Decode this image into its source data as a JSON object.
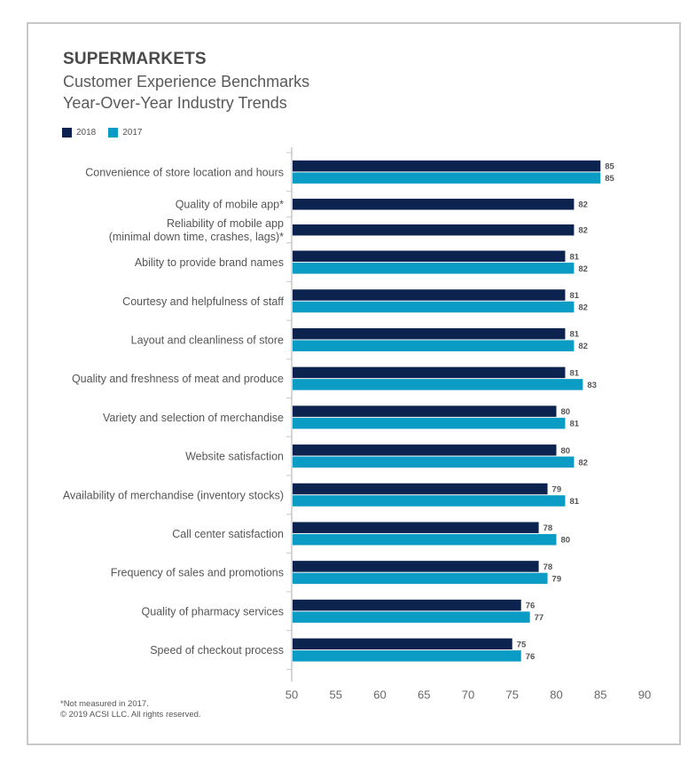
{
  "chart_data": {
    "type": "bar",
    "orientation": "horizontal",
    "title": "SUPERMARKETS",
    "subtitle": [
      "Customer Experience Benchmarks",
      "Year-Over-Year Industry Trends"
    ],
    "xlabel": "",
    "ylabel": "",
    "xlim": [
      50,
      90
    ],
    "xticks": [
      50,
      55,
      60,
      65,
      70,
      75,
      80,
      85,
      90
    ],
    "grid": false,
    "legend_position": "top-left",
    "categories": [
      "Convenience of store location and hours",
      "Quality of mobile app*",
      "Reliability of mobile app (minimal down time, crashes, lags)*",
      "Ability to provide brand names",
      "Courtesy and helpfulness of staff",
      "Layout and cleanliness of store",
      "Quality and freshness of meat and produce",
      "Variety and selection of merchandise",
      "Website satisfaction",
      "Availability of merchandise (inventory stocks)",
      "Call center satisfaction",
      "Frequency of sales and promotions",
      "Quality of pharmacy services",
      "Speed of checkout process"
    ],
    "category_lines": [
      [
        "Convenience of store location and hours"
      ],
      [
        "Quality of mobile app*"
      ],
      [
        "Reliability of mobile app",
        "(minimal down time, crashes, lags)*"
      ],
      [
        "Ability to provide brand names"
      ],
      [
        "Courtesy and helpfulness of staff"
      ],
      [
        "Layout and cleanliness of store"
      ],
      [
        "Quality and freshness of meat and produce"
      ],
      [
        "Variety and selection of merchandise"
      ],
      [
        "Website satisfaction"
      ],
      [
        "Availability of merchandise (inventory stocks)"
      ],
      [
        "Call center satisfaction"
      ],
      [
        "Frequency of sales and promotions"
      ],
      [
        "Quality of pharmacy services"
      ],
      [
        "Speed of checkout process"
      ]
    ],
    "series": [
      {
        "name": "2018",
        "color": "#0c2350",
        "values": [
          85,
          82,
          82,
          81,
          81,
          81,
          81,
          80,
          80,
          79,
          78,
          78,
          76,
          75
        ]
      },
      {
        "name": "2017",
        "color": "#0a9cc4",
        "values": [
          85,
          null,
          null,
          82,
          82,
          82,
          83,
          81,
          82,
          81,
          80,
          79,
          77,
          76
        ]
      }
    ]
  },
  "footnotes": {
    "note": "*Not measured in 2017.",
    "copyright": "© 2019 ACSI LLC. All rights reserved."
  }
}
